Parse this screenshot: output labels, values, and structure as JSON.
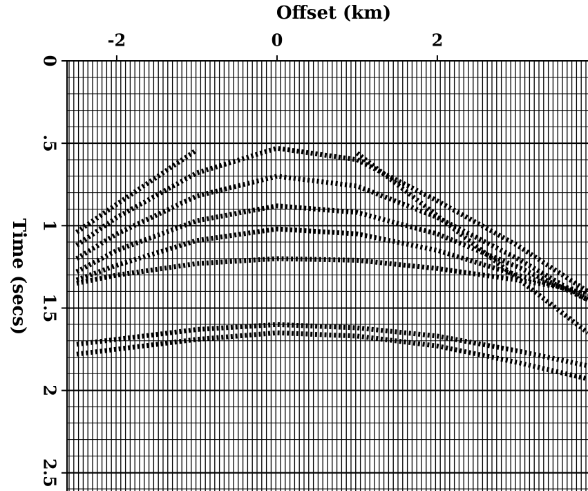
{
  "chart_data": {
    "type": "line",
    "title": "Offset (km)",
    "y_label": "Time (secs)",
    "x": [
      -2.5,
      -2,
      -1,
      0,
      1,
      2,
      3,
      3.88
    ],
    "series": [
      {
        "color": "#000",
        "values": [
          1.04,
          0.87,
          0.54,
          null,
          0.56,
          0.94,
          1.32,
          1.65
        ]
      },
      {
        "color": "#000",
        "values": [
          1.12,
          0.95,
          0.68,
          0.53,
          0.6,
          0.85,
          1.12,
          1.4
        ]
      },
      {
        "color": "#000",
        "values": [
          1.2,
          1.05,
          0.82,
          0.7,
          0.76,
          0.95,
          1.2,
          1.45
        ]
      },
      {
        "color": "#000",
        "values": [
          1.28,
          1.15,
          0.97,
          0.88,
          0.92,
          1.05,
          1.25,
          1.45
        ]
      },
      {
        "color": "#000",
        "values": [
          1.33,
          1.24,
          1.09,
          1.02,
          1.05,
          1.15,
          1.3,
          1.42
        ]
      },
      {
        "color": "#000",
        "values": [
          1.35,
          1.3,
          1.23,
          1.2,
          1.21,
          1.26,
          1.33,
          1.4
        ]
      },
      {
        "color": "#000",
        "values": [
          1.72,
          1.69,
          1.63,
          1.6,
          1.62,
          1.67,
          1.76,
          1.85
        ]
      },
      {
        "color": "#000",
        "values": [
          1.78,
          1.75,
          1.69,
          1.65,
          1.67,
          1.73,
          1.83,
          1.93
        ]
      }
    ],
    "xlim": [
      -2.62,
      3.88
    ],
    "xticks": [
      -2,
      0,
      2
    ],
    "ylim": [
      0,
      2.61
    ],
    "yticks": [
      0,
      {
        "value": 0.5,
        "label": ".5"
      },
      1,
      1.5,
      2,
      2.5
    ],
    "grid": true
  }
}
